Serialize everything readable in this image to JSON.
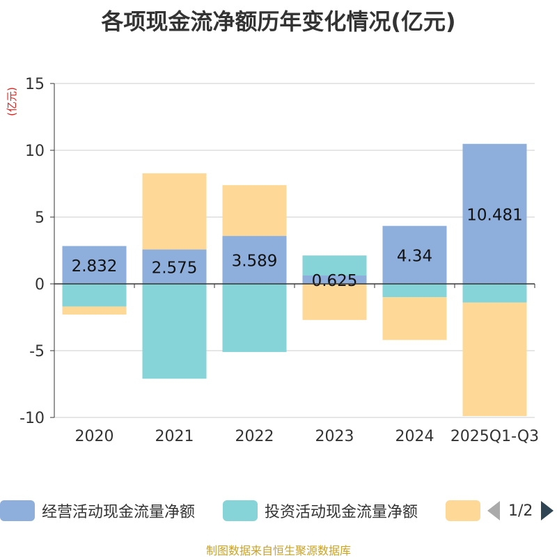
{
  "chart_data": {
    "type": "bar",
    "stacked": true,
    "title": "各项现金流净额历年变化情况(亿元)",
    "ylabel": "(亿元)",
    "ylim": [
      -10,
      15
    ],
    "yticks": [
      -10,
      -5,
      0,
      5,
      10,
      15
    ],
    "categories": [
      "2020",
      "2021",
      "2022",
      "2023",
      "2024",
      "2025Q1-Q3"
    ],
    "series": [
      {
        "name": "经营活动现金流量净额",
        "color": "#8eaedb",
        "values": [
          2.832,
          2.575,
          3.589,
          0.625,
          4.34,
          10.481
        ],
        "labels": [
          "2.832",
          "2.575",
          "3.589",
          "0.625",
          "4.34",
          "10.481"
        ]
      },
      {
        "name": "投资活动现金流量净额",
        "color": "#86d4d8",
        "values": [
          -1.7,
          -7.1,
          -5.1,
          1.5,
          -1.0,
          -1.4
        ]
      },
      {
        "name": "",
        "color": "#fed896",
        "values": [
          -0.6,
          5.7,
          3.8,
          -2.7,
          -3.2,
          -8.5
        ]
      }
    ]
  },
  "legend": {
    "items": [
      {
        "label": "经营活动现金流量净额",
        "color": "#8eaedb"
      },
      {
        "label": "投资活动现金流量净额",
        "color": "#86d4d8"
      },
      {
        "label": "",
        "color": "#fed896"
      }
    ],
    "page": "1/2"
  },
  "source": "制图数据来自恒生聚源数据库"
}
